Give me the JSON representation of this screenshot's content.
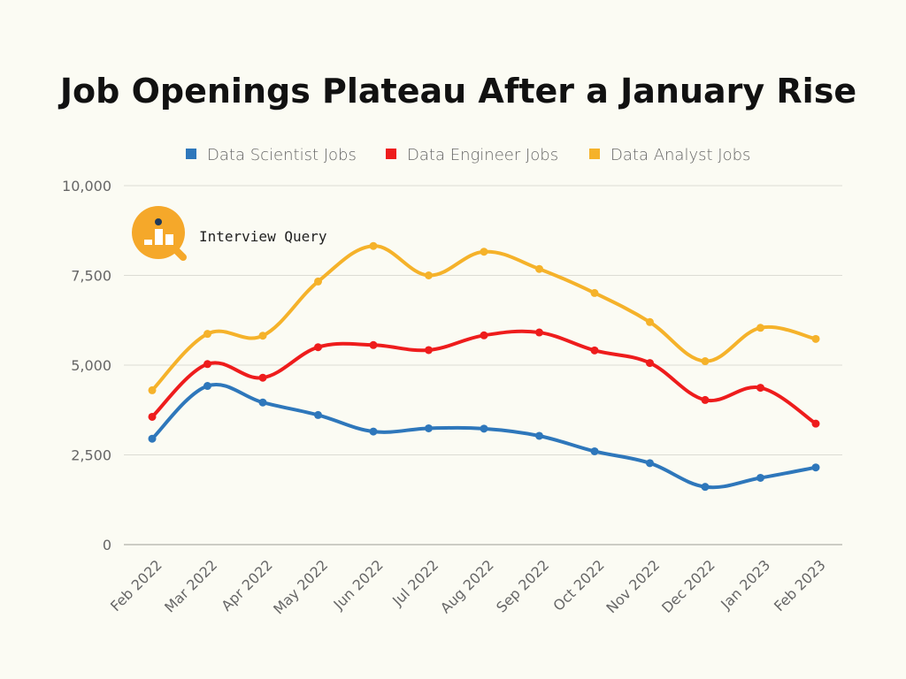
{
  "chart_data": {
    "type": "line",
    "title": "Job Openings Plateau After a January Rise",
    "xlabel": "",
    "ylabel": "",
    "ylim": [
      0,
      10000
    ],
    "y_ticks": [
      0,
      2500,
      5000,
      7500,
      10000
    ],
    "y_tick_labels": [
      "0",
      "2,500",
      "5,000",
      "7,500",
      "10,000"
    ],
    "grid": true,
    "legend_position": "top",
    "categories": [
      "Feb 2022",
      "Mar 2022",
      "Apr 2022",
      "May 2022",
      "Jun 2022",
      "Jul 2022",
      "Aug 2022",
      "Sep 2022",
      "Oct 2022",
      "Nov 2022",
      "Dec 2022",
      "Jan 2023",
      "Feb 2023"
    ],
    "series": [
      {
        "name": "Data Scientist Jobs",
        "color": "#2e77bb",
        "values": [
          2950,
          4420,
          3960,
          3610,
          3150,
          3240,
          3230,
          3030,
          2600,
          2270,
          1610,
          1860,
          2150
        ]
      },
      {
        "name": "Data Engineer Jobs",
        "color": "#ee1c1c",
        "values": [
          3560,
          5030,
          4650,
          5500,
          5560,
          5420,
          5830,
          5910,
          5410,
          5060,
          4030,
          4370,
          3370
        ]
      },
      {
        "name": "Data Analyst Jobs",
        "color": "#f5b22a",
        "values": [
          4300,
          5870,
          5820,
          7330,
          8320,
          7500,
          8160,
          7680,
          7010,
          6200,
          5110,
          6040,
          5730
        ]
      }
    ]
  },
  "branding": {
    "text": "Interview Query",
    "logo_icon": "interview-query-logo-icon",
    "logo_color": "#f5a82a"
  }
}
